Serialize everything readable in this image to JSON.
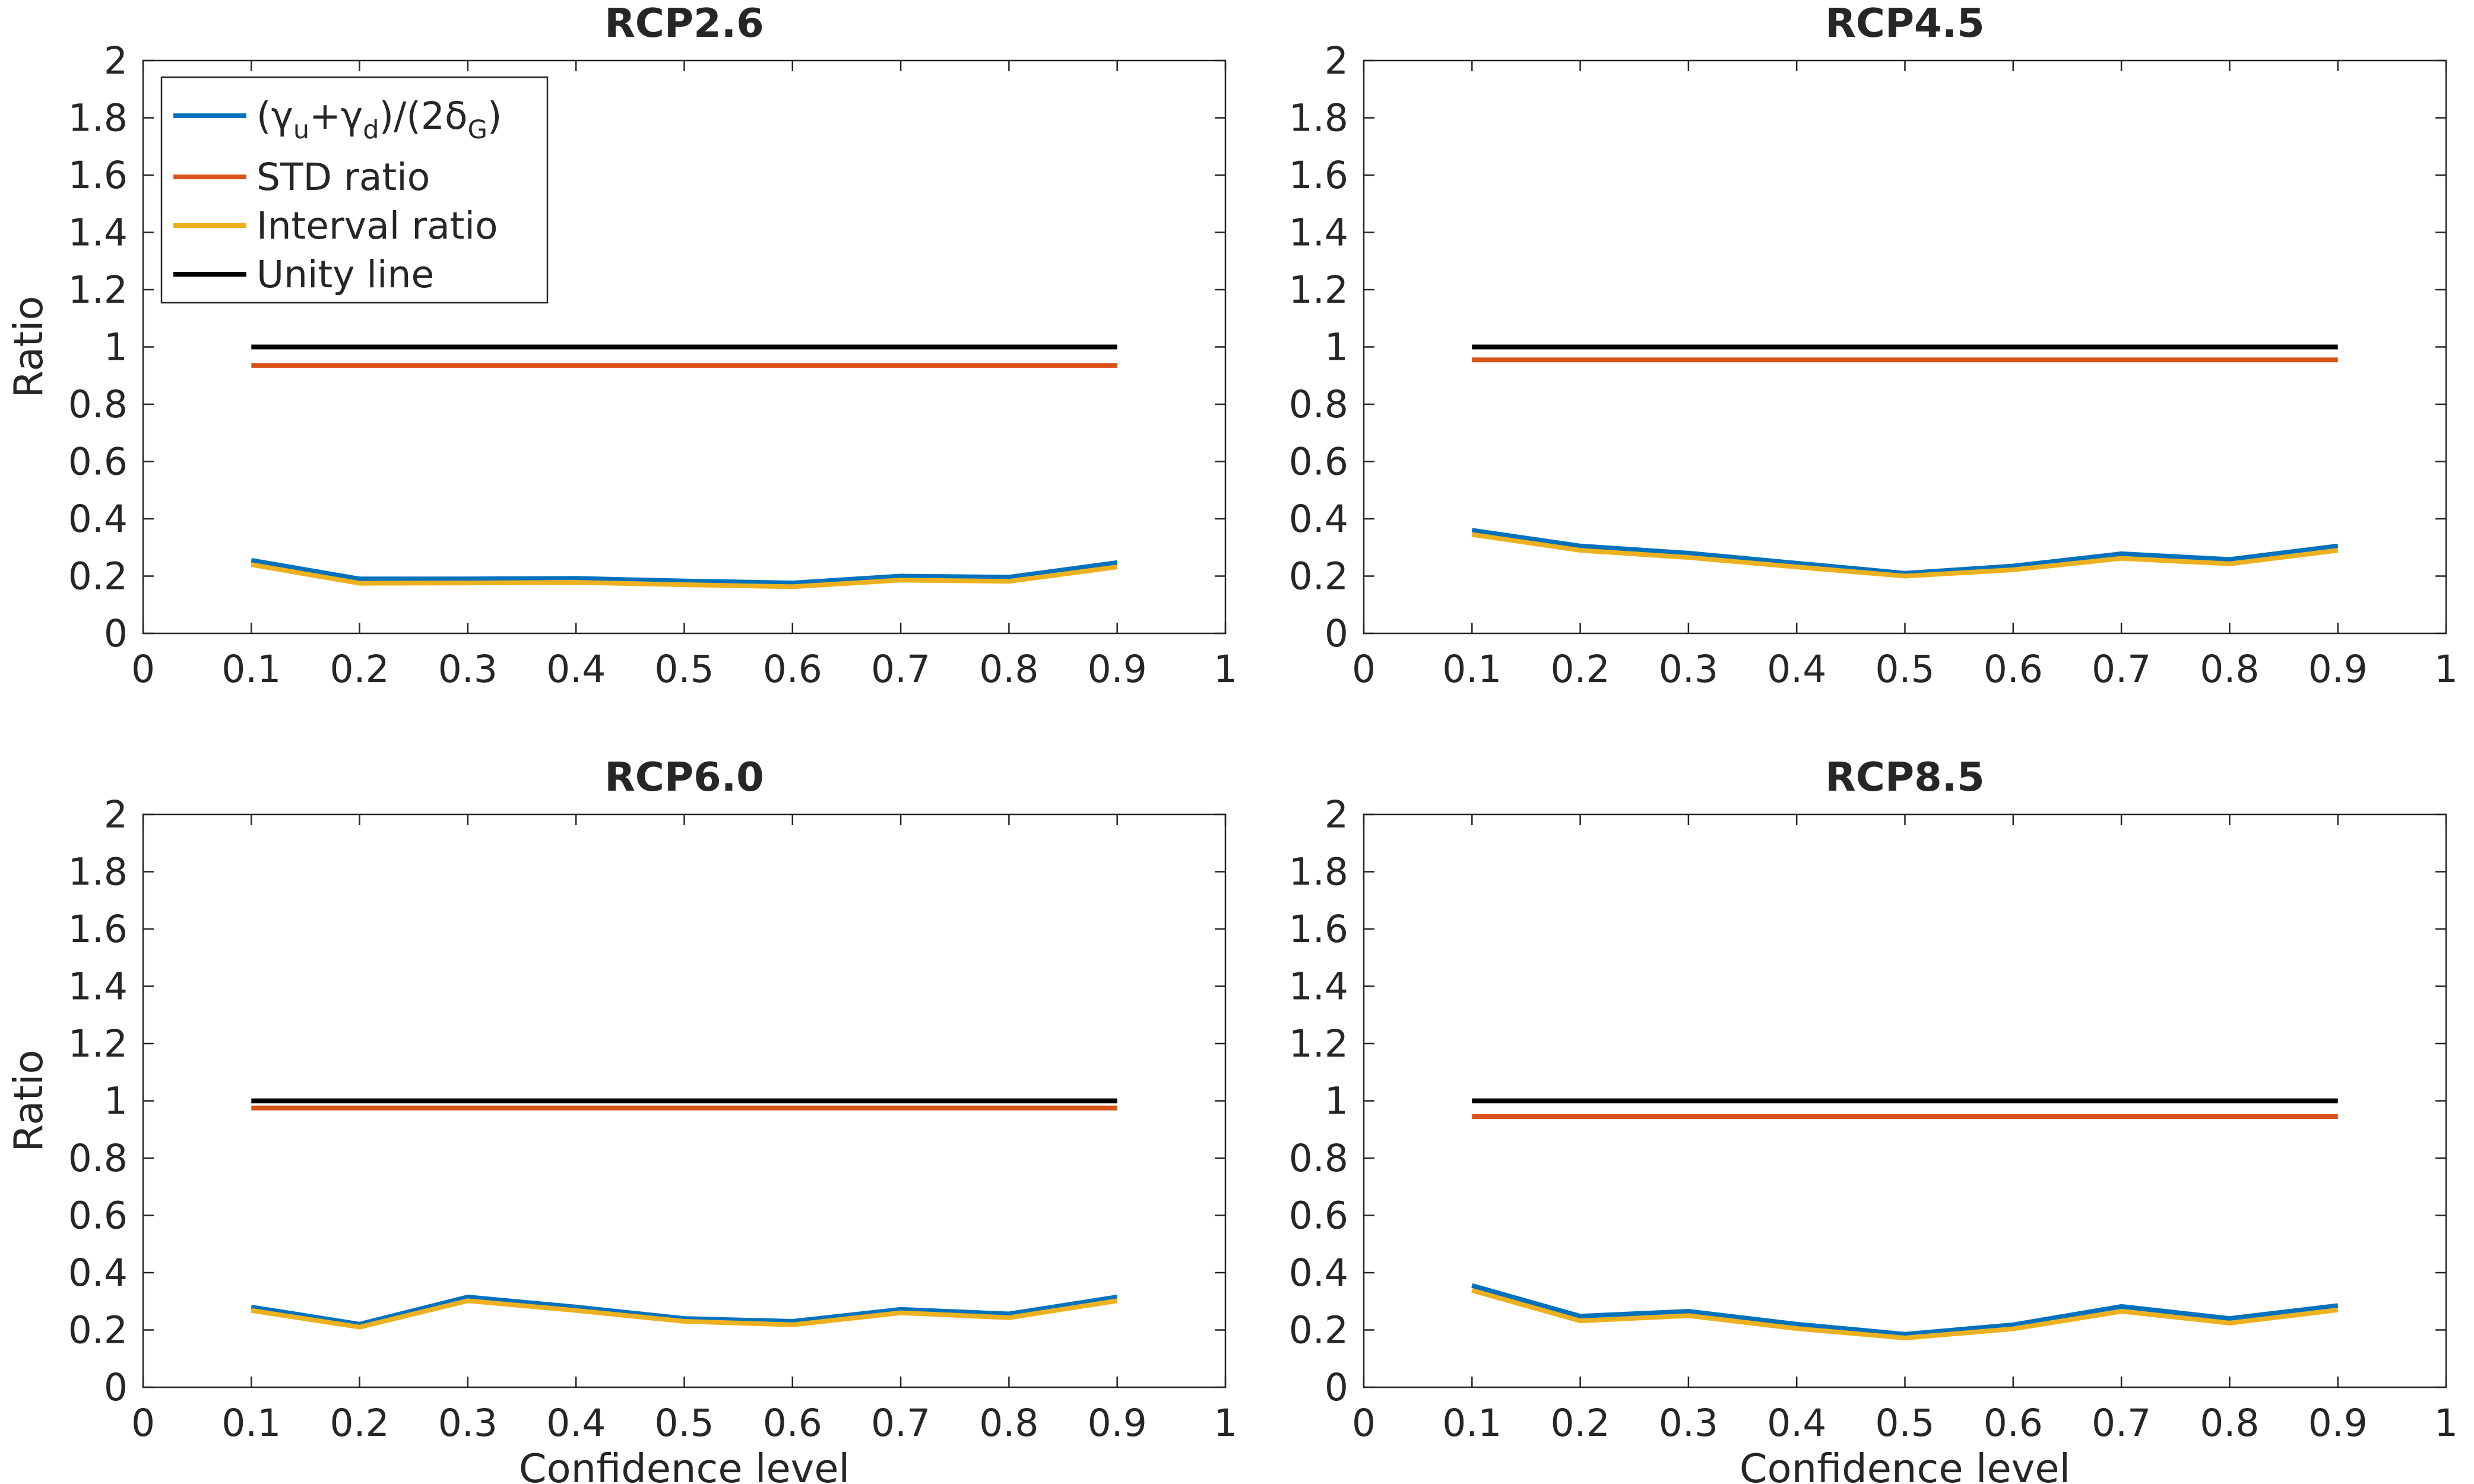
{
  "chart_data": [
    {
      "type": "line",
      "title": "RCP2.6",
      "xlabel": "",
      "ylabel": "Ratio",
      "xlim": [
        0,
        1
      ],
      "ylim": [
        0,
        2
      ],
      "xticks": [
        "0",
        "0.1",
        "0.2",
        "0.3",
        "0.4",
        "0.5",
        "0.6",
        "0.7",
        "0.8",
        "0.9",
        "1"
      ],
      "yticks": [
        "0",
        "0.2",
        "0.4",
        "0.6",
        "0.8",
        "1",
        "1.2",
        "1.4",
        "1.6",
        "1.8",
        "2"
      ],
      "x": [
        0.1,
        0.2,
        0.3,
        0.4,
        0.5,
        0.6,
        0.7,
        0.8,
        0.9
      ],
      "series": [
        {
          "key": "gamma",
          "color": "#0072BD",
          "values": [
            0.255,
            0.19,
            0.19,
            0.192,
            0.183,
            0.176,
            0.2,
            0.196,
            0.247
          ]
        },
        {
          "key": "std",
          "color": "#D95319",
          "values": [
            0.935,
            0.935,
            0.935,
            0.935,
            0.935,
            0.935,
            0.935,
            0.935,
            0.935
          ]
        },
        {
          "key": "interval",
          "color": "#EDB120",
          "values": [
            0.24,
            0.175,
            0.176,
            0.178,
            0.17,
            0.163,
            0.186,
            0.182,
            0.232
          ]
        },
        {
          "key": "unity",
          "color": "#000000",
          "values": [
            1,
            1,
            1,
            1,
            1,
            1,
            1,
            1,
            1
          ]
        }
      ],
      "legend": {
        "placement": "top-left",
        "entries": [
          {
            "color": "#0072BD",
            "pre": "(",
            "g1": "γ",
            "s1": "u",
            "mid": "+",
            "g2": "γ",
            "s2": "d",
            "mid2": ")/(2",
            "g3": "δ",
            "s3": "G",
            "post": ")"
          },
          {
            "color": "#D95319",
            "label": "STD ratio"
          },
          {
            "color": "#EDB120",
            "label": "Interval ratio"
          },
          {
            "color": "#000000",
            "label": "Unity line"
          }
        ]
      }
    },
    {
      "type": "line",
      "title": "RCP4.5",
      "xlabel": "",
      "ylabel": "",
      "xlim": [
        0,
        1
      ],
      "ylim": [
        0,
        2
      ],
      "xticks": [
        "0",
        "0.1",
        "0.2",
        "0.3",
        "0.4",
        "0.5",
        "0.6",
        "0.7",
        "0.8",
        "0.9",
        "1"
      ],
      "yticks": [
        "0",
        "0.2",
        "0.4",
        "0.6",
        "0.8",
        "1",
        "1.2",
        "1.4",
        "1.6",
        "1.8",
        "2"
      ],
      "x": [
        0.1,
        0.2,
        0.3,
        0.4,
        0.5,
        0.6,
        0.7,
        0.8,
        0.9
      ],
      "series": [
        {
          "key": "gamma",
          "color": "#0072BD",
          "values": [
            0.36,
            0.305,
            0.28,
            0.245,
            0.21,
            0.235,
            0.278,
            0.258,
            0.305
          ]
        },
        {
          "key": "std",
          "color": "#D95319",
          "values": [
            0.955,
            0.955,
            0.955,
            0.955,
            0.955,
            0.955,
            0.955,
            0.955,
            0.955
          ]
        },
        {
          "key": "interval",
          "color": "#EDB120",
          "values": [
            0.345,
            0.29,
            0.265,
            0.232,
            0.2,
            0.222,
            0.262,
            0.243,
            0.29
          ]
        },
        {
          "key": "unity",
          "color": "#000000",
          "values": [
            1,
            1,
            1,
            1,
            1,
            1,
            1,
            1,
            1
          ]
        }
      ]
    },
    {
      "type": "line",
      "title": "RCP6.0",
      "xlabel": "",
      "ylabel": "Ratio",
      "xlim": [
        0,
        1
      ],
      "ylim": [
        0,
        2
      ],
      "xticks": [
        "0",
        "0.1",
        "0.2",
        "0.3",
        "0.4",
        "0.5",
        "0.6",
        "0.7",
        "0.8",
        "0.9",
        "1"
      ],
      "yticks": [
        "0",
        "0.2",
        "0.4",
        "0.6",
        "0.8",
        "1",
        "1.2",
        "1.4",
        "1.6",
        "1.8",
        "2"
      ],
      "x": [
        0.1,
        0.2,
        0.3,
        0.4,
        0.5,
        0.6,
        0.7,
        0.8,
        0.9
      ],
      "series": [
        {
          "key": "gamma",
          "color": "#0072BD",
          "values": [
            0.28,
            0.22,
            0.315,
            0.28,
            0.24,
            0.23,
            0.272,
            0.256,
            0.315
          ]
        },
        {
          "key": "std",
          "color": "#D95319",
          "values": [
            0.975,
            0.975,
            0.975,
            0.975,
            0.975,
            0.975,
            0.975,
            0.975,
            0.975
          ]
        },
        {
          "key": "interval",
          "color": "#EDB120",
          "values": [
            0.268,
            0.21,
            0.302,
            0.268,
            0.23,
            0.218,
            0.26,
            0.243,
            0.302
          ]
        },
        {
          "key": "unity",
          "color": "#000000",
          "values": [
            1,
            1,
            1,
            1,
            1,
            1,
            1,
            1,
            1
          ]
        }
      ]
    },
    {
      "type": "line",
      "title": "RCP8.5",
      "xlabel": "Confidence level",
      "ylabel": "",
      "xlim": [
        0,
        1
      ],
      "ylim": [
        0,
        2
      ],
      "xticks": [
        "0",
        "0.1",
        "0.2",
        "0.3",
        "0.4",
        "0.5",
        "0.6",
        "0.7",
        "0.8",
        "0.9",
        "1"
      ],
      "yticks": [
        "0",
        "0.2",
        "0.4",
        "0.6",
        "0.8",
        "1",
        "1.2",
        "1.4",
        "1.6",
        "1.8",
        "2"
      ],
      "x": [
        0.1,
        0.2,
        0.3,
        0.4,
        0.5,
        0.6,
        0.7,
        0.8,
        0.9
      ],
      "series": [
        {
          "key": "gamma",
          "color": "#0072BD",
          "values": [
            0.355,
            0.248,
            0.265,
            0.22,
            0.185,
            0.218,
            0.282,
            0.24,
            0.285
          ]
        },
        {
          "key": "std",
          "color": "#D95319",
          "values": [
            0.945,
            0.945,
            0.945,
            0.945,
            0.945,
            0.945,
            0.945,
            0.945,
            0.945
          ]
        },
        {
          "key": "interval",
          "color": "#EDB120",
          "values": [
            0.338,
            0.232,
            0.25,
            0.205,
            0.172,
            0.204,
            0.265,
            0.224,
            0.27
          ]
        },
        {
          "key": "unity",
          "color": "#000000",
          "values": [
            1,
            1,
            1,
            1,
            1,
            1,
            1,
            1,
            1
          ]
        }
      ]
    }
  ],
  "bottom_left_xlabel": "Confidence level"
}
